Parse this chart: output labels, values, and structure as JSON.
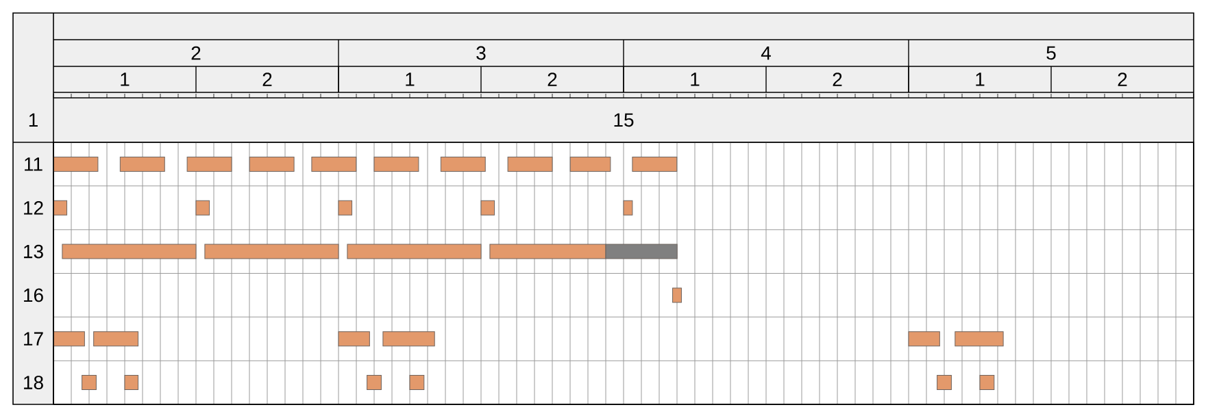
{
  "chart_data": {
    "type": "bar",
    "orientation": "horizontal",
    "categories": [
      "11",
      "12",
      "13",
      "16",
      "17",
      "18"
    ],
    "series": [
      {
        "color": "#e3996b",
        "base": [
          1.5,
          1.5,
          1.531,
          3.672,
          1.5,
          1.6
        ],
        "values": [
          0.156,
          0.047,
          0.469,
          0.031,
          0.109,
          0.05
        ]
      },
      {
        "color": "#e3996b",
        "base": [
          1.734,
          2.0,
          2.031,
          null,
          1.641,
          1.75
        ],
        "values": [
          0.156,
          0.047,
          0.469,
          null,
          0.156,
          0.047
        ]
      },
      {
        "color": "#e3996b",
        "base": [
          1.969,
          2.5,
          2.531,
          null,
          2.5,
          2.6
        ],
        "values": [
          0.156,
          0.047,
          0.469,
          null,
          0.109,
          0.05
        ]
      },
      {
        "color": "#e3996b",
        "base": [
          2.188,
          3.0,
          3.031,
          null,
          2.656,
          2.75
        ],
        "values": [
          0.156,
          0.047,
          0.406,
          null,
          0.181,
          0.05
        ]
      },
      {
        "color": "#e3996b",
        "base": [
          2.406,
          3.5,
          null,
          null,
          4.5,
          4.6
        ],
        "values": [
          0.156,
          0.031,
          null,
          null,
          0.109,
          0.05
        ]
      },
      {
        "color": "#e3996b",
        "base": [
          2.625,
          null,
          null,
          null,
          4.663,
          4.75
        ],
        "values": [
          0.156,
          null,
          null,
          null,
          0.169,
          0.05
        ]
      },
      {
        "color": "#e3996b",
        "base": [
          2.859,
          null,
          null,
          null,
          null,
          null
        ],
        "values": [
          0.156,
          null,
          null,
          null,
          null,
          null
        ]
      },
      {
        "color": "#e3996b",
        "base": [
          3.094,
          null,
          null,
          null,
          null,
          null
        ],
        "values": [
          0.156,
          null,
          null,
          null,
          null,
          null
        ]
      },
      {
        "color": "#e3996b",
        "base": [
          3.313,
          null,
          null,
          null,
          null,
          null
        ],
        "values": [
          0.141,
          null,
          null,
          null,
          null,
          null
        ]
      },
      {
        "color": "#e3996b",
        "base": [
          3.531,
          null,
          null,
          null,
          null,
          null
        ],
        "values": [
          0.156,
          null,
          null,
          null,
          null,
          null
        ]
      },
      {
        "color": "#808080",
        "base": [
          null,
          null,
          3.438,
          null,
          null,
          null
        ],
        "values": [
          null,
          null,
          0.25,
          null,
          null,
          null
        ]
      }
    ],
    "xlim": [
      1.5,
      5.5
    ],
    "xticks": [
      {
        "value": 1.5,
        "label": null
      },
      {
        "value": 1.5625,
        "label": null
      },
      {
        "value": 1.625,
        "label": null
      },
      {
        "value": 1.6875,
        "label": null
      },
      {
        "value": 1.75,
        "label": null
      },
      {
        "value": 1.8125,
        "label": null
      },
      {
        "value": 1.875,
        "label": null
      },
      {
        "value": 1.9375,
        "label": null
      },
      2,
      {
        "value": 2.0625,
        "label": null
      },
      {
        "value": 2.125,
        "label": null
      },
      {
        "value": 2.1875,
        "label": null
      },
      {
        "value": 2.25,
        "label": null
      },
      {
        "value": 2.3125,
        "label": null
      },
      {
        "value": 2.375,
        "label": null
      },
      {
        "value": 2.4375,
        "label": null
      },
      {
        "value": 2.5,
        "label": null
      },
      {
        "value": 2.5625,
        "label": null
      },
      {
        "value": 2.625,
        "label": null
      },
      {
        "value": 2.6875,
        "label": null
      },
      {
        "value": 2.75,
        "label": null
      },
      {
        "value": 2.8125,
        "label": null
      },
      {
        "value": 2.875,
        "label": null
      },
      {
        "value": 2.9375,
        "label": null
      },
      3,
      {
        "value": 3.0625,
        "label": null
      },
      {
        "value": 3.125,
        "label": null
      },
      {
        "value": 3.1875,
        "label": null
      },
      {
        "value": 3.25,
        "label": null
      },
      {
        "value": 3.3125,
        "label": null
      },
      {
        "value": 3.375,
        "label": null
      },
      {
        "value": 3.4375,
        "label": null
      },
      {
        "value": 3.5,
        "label": null
      },
      {
        "value": 3.5625,
        "label": null
      },
      {
        "value": 3.625,
        "label": null
      },
      {
        "value": 3.6875,
        "label": null
      },
      {
        "value": 3.75,
        "label": null
      },
      {
        "value": 3.8125,
        "label": null
      },
      {
        "value": 3.875,
        "label": null
      },
      {
        "value": 3.9375,
        "label": null
      },
      4,
      {
        "value": 4.0625,
        "label": null
      },
      {
        "value": 4.125,
        "label": null
      },
      {
        "value": 4.1875,
        "label": null
      },
      {
        "value": 4.25,
        "label": null
      },
      {
        "value": 4.3125,
        "label": null
      },
      {
        "value": 4.375,
        "label": null
      },
      {
        "value": 4.4375,
        "label": null
      },
      {
        "value": 4.5,
        "label": null
      },
      {
        "value": 4.5625,
        "label": null
      },
      {
        "value": 4.625,
        "label": null
      },
      {
        "value": 4.6875,
        "label": null
      },
      {
        "value": 4.75,
        "label": null
      },
      {
        "value": 4.8125,
        "label": null
      },
      {
        "value": 4.875,
        "label": null
      },
      {
        "value": 4.9375,
        "label": null
      },
      5,
      {
        "value": 5.0625,
        "label": null
      },
      {
        "value": 5.125,
        "label": null
      },
      {
        "value": 5.1875,
        "label": null
      },
      {
        "value": 5.25,
        "label": null
      },
      {
        "value": 5.3125,
        "label": null
      },
      {
        "value": 5.375,
        "label": null
      },
      {
        "value": 5.4375,
        "label": null
      },
      {
        "value": 5.5,
        "label": null
      }
    ],
    "grid": true,
    "annotations": [
      "1",
      "2",
      "1",
      "2",
      "1",
      "2",
      "1",
      "2",
      "1",
      "15"
    ]
  }
}
